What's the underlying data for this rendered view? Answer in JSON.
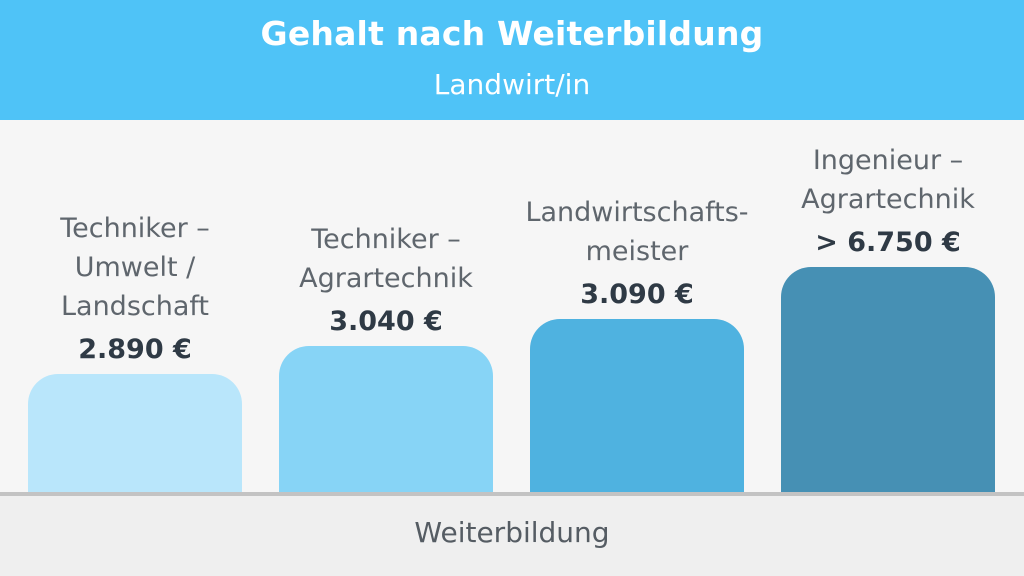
{
  "header": {
    "title": "Gehalt nach Weiterbildung",
    "subtitle": "Landwirt/in",
    "color": "#4fc3f7"
  },
  "footer": {
    "xlabel": "Weiterbildung"
  },
  "chart_data": {
    "type": "bar",
    "title": "Gehalt nach Weiterbildung",
    "subtitle": "Landwirt/in",
    "xlabel": "Weiterbildung",
    "ylabel": "",
    "categories": [
      "Techniker – Umwelt / Landschaft",
      "Techniker – Agrartechnik",
      "Landwirtschafts-meister",
      "Ingenieur – Agrartechnik"
    ],
    "category_lines": [
      [
        "Techniker –",
        "Umwelt /",
        "Landschaft"
      ],
      [
        "Techniker –",
        "Agrartechnik"
      ],
      [
        "Landwirtschafts-",
        "meister"
      ],
      [
        "Ingenieur –",
        "Agrartechnik"
      ]
    ],
    "values": [
      2890,
      3040,
      3090,
      6750
    ],
    "value_labels": [
      "2.890 €",
      "3.040 €",
      "3.090 €",
      "> 6.750 €"
    ],
    "bar_colors": [
      "#b9e6fb",
      "#87d4f6",
      "#4fb2e0",
      "#4690b4"
    ],
    "grid": false,
    "legend": "none"
  }
}
